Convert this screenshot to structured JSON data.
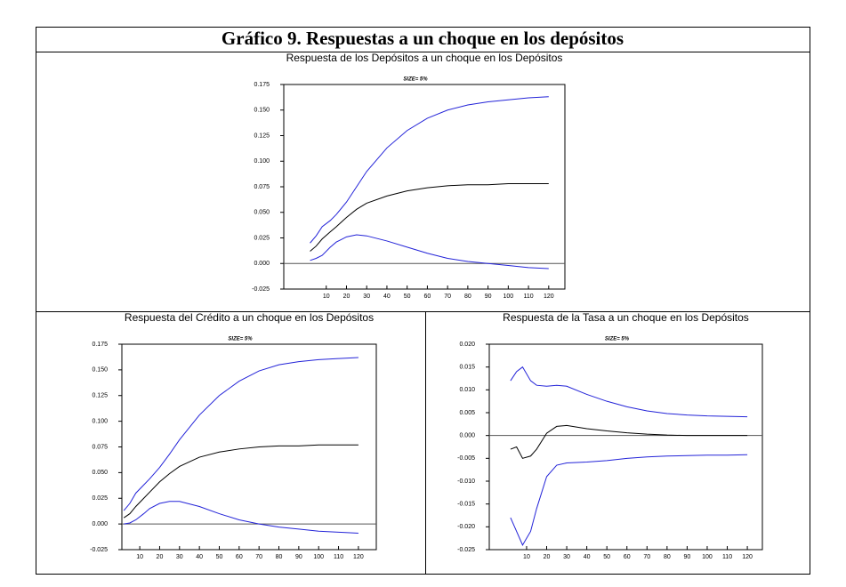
{
  "header": {
    "title": "Gráfico 9. Respuestas a un choque en los depósitos"
  },
  "chart_data": [
    {
      "type": "line",
      "title": "Respuesta de los Depósitos a un choque en los Depósitos",
      "subtitle": "SIZE= 5%",
      "x": [
        2,
        5,
        8,
        12,
        15,
        20,
        25,
        30,
        40,
        50,
        60,
        70,
        80,
        90,
        100,
        110,
        120
      ],
      "series": [
        {
          "color": "#2323d8",
          "values": [
            0.02,
            0.027,
            0.036,
            0.042,
            0.048,
            0.06,
            0.075,
            0.09,
            0.113,
            0.13,
            0.142,
            0.15,
            0.155,
            0.158,
            0.16,
            0.162,
            0.163
          ]
        },
        {
          "color": "#000000",
          "values": [
            0.012,
            0.017,
            0.024,
            0.031,
            0.036,
            0.045,
            0.053,
            0.059,
            0.066,
            0.071,
            0.074,
            0.076,
            0.077,
            0.077,
            0.078,
            0.078,
            0.078
          ]
        },
        {
          "color": "#2323d8",
          "values": [
            0.003,
            0.005,
            0.008,
            0.016,
            0.021,
            0.026,
            0.028,
            0.027,
            0.022,
            0.016,
            0.01,
            0.005,
            0.002,
            0.0,
            -0.002,
            -0.004,
            -0.005
          ]
        }
      ],
      "xlim": [
        -11,
        128
      ],
      "xticks": [
        10,
        20,
        30,
        40,
        50,
        60,
        70,
        80,
        90,
        100,
        110,
        120
      ],
      "ylim": [
        -0.025,
        0.175
      ],
      "yticks": [
        {
          "value": -0.025,
          "label": "-0.025"
        },
        {
          "value": 0,
          "label": "0.000"
        },
        {
          "value": 0.025,
          "label": "0.025"
        },
        {
          "value": 0.05,
          "label": "0.050"
        },
        {
          "value": 0.075,
          "label": "0.075"
        },
        {
          "value": 0.1,
          "label": "0.100"
        },
        {
          "value": 0.125,
          "label": "0.125"
        },
        {
          "value": 0.15,
          "label": "0.150"
        },
        {
          "value": 0.175,
          "label": "0.175"
        }
      ]
    },
    {
      "type": "line",
      "title": "Respuesta del Crédito a un choque en los Depósitos",
      "subtitle": "SIZE= 5%",
      "x": [
        2,
        5,
        8,
        12,
        15,
        20,
        25,
        30,
        40,
        50,
        60,
        70,
        80,
        90,
        100,
        110,
        120
      ],
      "series": [
        {
          "color": "#2323d8",
          "values": [
            0.013,
            0.02,
            0.03,
            0.038,
            0.044,
            0.055,
            0.068,
            0.082,
            0.106,
            0.125,
            0.139,
            0.149,
            0.155,
            0.158,
            0.16,
            0.161,
            0.162
          ]
        },
        {
          "color": "#000000",
          "values": [
            0.006,
            0.01,
            0.017,
            0.025,
            0.031,
            0.041,
            0.049,
            0.056,
            0.065,
            0.07,
            0.073,
            0.075,
            0.076,
            0.076,
            0.077,
            0.077,
            0.077
          ]
        },
        {
          "color": "#2323d8",
          "values": [
            0.0,
            0.001,
            0.004,
            0.01,
            0.015,
            0.02,
            0.022,
            0.022,
            0.017,
            0.01,
            0.004,
            0.0,
            -0.003,
            -0.005,
            -0.007,
            -0.008,
            -0.009
          ]
        }
      ],
      "xlim": [
        1,
        129
      ],
      "xticks": [
        10,
        20,
        30,
        40,
        50,
        60,
        70,
        80,
        90,
        100,
        110,
        120
      ],
      "ylim": [
        -0.025,
        0.175
      ],
      "yticks": [
        {
          "value": -0.025,
          "label": "-0.025"
        },
        {
          "value": 0,
          "label": "0.000"
        },
        {
          "value": 0.025,
          "label": "0.025"
        },
        {
          "value": 0.05,
          "label": "0.050"
        },
        {
          "value": 0.075,
          "label": "0.075"
        },
        {
          "value": 0.1,
          "label": "0.100"
        },
        {
          "value": 0.125,
          "label": "0.125"
        },
        {
          "value": 0.15,
          "label": "0.150"
        },
        {
          "value": 0.175,
          "label": "0.175"
        }
      ]
    },
    {
      "type": "line",
      "title": "Respuesta de la Tasa a un choque en los Depósitos",
      "subtitle": "SIZE= 5%",
      "x": [
        2,
        5,
        8,
        12,
        15,
        20,
        25,
        30,
        40,
        50,
        60,
        70,
        80,
        90,
        100,
        110,
        120
      ],
      "series": [
        {
          "color": "#2323d8",
          "values": [
            0.012,
            0.014,
            0.015,
            0.012,
            0.011,
            0.0108,
            0.011,
            0.0108,
            0.009,
            0.0075,
            0.0063,
            0.0054,
            0.0048,
            0.0045,
            0.0043,
            0.0042,
            0.0041
          ]
        },
        {
          "color": "#000000",
          "values": [
            -0.003,
            -0.0025,
            -0.005,
            -0.0045,
            -0.003,
            0.0005,
            0.002,
            0.0022,
            0.0015,
            0.001,
            0.0006,
            0.0003,
            0.0001,
            0.0,
            0.0,
            0.0,
            0.0
          ]
        },
        {
          "color": "#2323d8",
          "values": [
            -0.018,
            -0.021,
            -0.024,
            -0.021,
            -0.016,
            -0.009,
            -0.0065,
            -0.006,
            -0.0058,
            -0.0055,
            -0.005,
            -0.0047,
            -0.0045,
            -0.0044,
            -0.0043,
            -0.0043,
            -0.0042
          ]
        }
      ],
      "xlim": [
        -8.6,
        127.5
      ],
      "xticks": [
        10,
        20,
        30,
        40,
        50,
        60,
        70,
        80,
        90,
        100,
        110,
        120
      ],
      "ylim": [
        -0.025,
        0.02
      ],
      "yticks": [
        {
          "value": -0.025,
          "label": "-0.025"
        },
        {
          "value": -0.02,
          "label": "-0.020"
        },
        {
          "value": -0.015,
          "label": "-0.015"
        },
        {
          "value": -0.01,
          "label": "-0.010"
        },
        {
          "value": -0.005,
          "label": "-0.005"
        },
        {
          "value": 0,
          "label": "0.000"
        },
        {
          "value": 0.005,
          "label": "0.005"
        },
        {
          "value": 0.01,
          "label": "0.010"
        },
        {
          "value": 0.015,
          "label": "0.015"
        },
        {
          "value": 0.02,
          "label": "0.020"
        }
      ]
    }
  ]
}
